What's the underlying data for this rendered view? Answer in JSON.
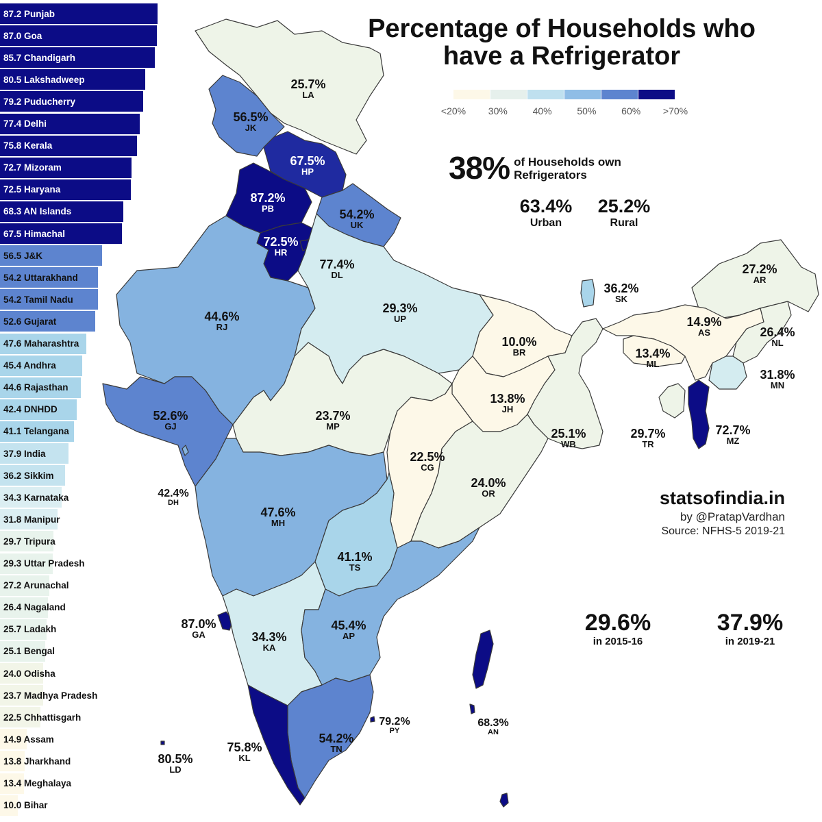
{
  "title_line1": "Percentage of Households who",
  "title_line2": "have a Refrigerator",
  "legend": {
    "ticks": [
      "<20%",
      "30%",
      "40%",
      "50%",
      "60%",
      ">70%"
    ]
  },
  "headline": {
    "value": "38%",
    "line1": "of Households own",
    "line2": "Refrigerators"
  },
  "urban": {
    "value": "63.4%",
    "label": "Urban"
  },
  "rural": {
    "value": "25.2%",
    "label": "Rural"
  },
  "trend": [
    {
      "value": "29.6%",
      "label": "in 2015-16"
    },
    {
      "value": "37.9%",
      "label": "in 2019-21"
    }
  ],
  "brand": {
    "site": "statsofindia.in",
    "by": "by @PratapVardhan",
    "source": "Source: NFHS-5 2019-21"
  },
  "colors": {
    "c0": "#fdf8e8",
    "c1": "#eef4e8",
    "c2": "#d4ecf0",
    "c3": "#a9d5ea",
    "c4": "#85b3e0",
    "c5": "#5d84cf",
    "c6": "#1f2aa0",
    "c7": "#0c0c86"
  },
  "ranking": [
    {
      "label": "87.2 Punjab",
      "value": 87.2
    },
    {
      "label": "87.0 Goa",
      "value": 87.0
    },
    {
      "label": "85.7 Chandigarh",
      "value": 85.7
    },
    {
      "label": "80.5 Lakshadweep",
      "value": 80.5
    },
    {
      "label": "79.2 Puducherry",
      "value": 79.2
    },
    {
      "label": "77.4 Delhi",
      "value": 77.4
    },
    {
      "label": "75.8 Kerala",
      "value": 75.8
    },
    {
      "label": "72.7 Mizoram",
      "value": 72.7
    },
    {
      "label": "72.5 Haryana",
      "value": 72.5
    },
    {
      "label": "68.3 AN Islands",
      "value": 68.3
    },
    {
      "label": "67.5 Himachal",
      "value": 67.5
    },
    {
      "label": "56.5 J&K",
      "value": 56.5
    },
    {
      "label": "54.2 Uttarakhand",
      "value": 54.2
    },
    {
      "label": "54.2 Tamil Nadu",
      "value": 54.2
    },
    {
      "label": "52.6 Gujarat",
      "value": 52.6
    },
    {
      "label": "47.6 Maharashtra",
      "value": 47.6
    },
    {
      "label": "45.4 Andhra",
      "value": 45.4
    },
    {
      "label": "44.6 Rajasthan",
      "value": 44.6
    },
    {
      "label": "42.4 DNHDD",
      "value": 42.4
    },
    {
      "label": "41.1 Telangana",
      "value": 41.1
    },
    {
      "label": "37.9 India",
      "value": 37.9
    },
    {
      "label": "36.2 Sikkim",
      "value": 36.2
    },
    {
      "label": "34.3 Karnataka",
      "value": 34.3
    },
    {
      "label": "31.8 Manipur",
      "value": 31.8
    },
    {
      "label": "29.7 Tripura",
      "value": 29.7
    },
    {
      "label": "29.3 Uttar Pradesh",
      "value": 29.3
    },
    {
      "label": "27.2 Arunachal",
      "value": 27.2
    },
    {
      "label": "26.4 Nagaland",
      "value": 26.4
    },
    {
      "label": "25.7 Ladakh",
      "value": 25.7
    },
    {
      "label": "25.1 Bengal",
      "value": 25.1
    },
    {
      "label": "24.0 Odisha",
      "value": 24.0
    },
    {
      "label": "23.7 Madhya Pradesh",
      "value": 23.7
    },
    {
      "label": "22.5 Chhattisgarh",
      "value": 22.5
    },
    {
      "label": "14.9 Assam",
      "value": 14.9
    },
    {
      "label": "13.8 Jharkhand",
      "value": 13.8
    },
    {
      "label": "13.4 Meghalaya",
      "value": 13.4
    },
    {
      "label": "10.0 Bihar",
      "value": 10.0
    }
  ],
  "regions": [
    {
      "code": "LA",
      "value": "25.7%"
    },
    {
      "code": "JK",
      "value": "56.5%"
    },
    {
      "code": "HP",
      "value": "67.5%"
    },
    {
      "code": "PB",
      "value": "87.2%"
    },
    {
      "code": "UK",
      "value": "54.2%"
    },
    {
      "code": "HR",
      "value": "72.5%"
    },
    {
      "code": "DL",
      "value": "77.4%"
    },
    {
      "code": "RJ",
      "value": "44.6%"
    },
    {
      "code": "UP",
      "value": "29.3%"
    },
    {
      "code": "BR",
      "value": "10.0%"
    },
    {
      "code": "SK",
      "value": "36.2%"
    },
    {
      "code": "AR",
      "value": "27.2%"
    },
    {
      "code": "AS",
      "value": "14.9%"
    },
    {
      "code": "NL",
      "value": "26.4%"
    },
    {
      "code": "ML",
      "value": "13.4%"
    },
    {
      "code": "MN",
      "value": "31.8%"
    },
    {
      "code": "TR",
      "value": "29.7%"
    },
    {
      "code": "MZ",
      "value": "72.7%"
    },
    {
      "code": "GJ",
      "value": "52.6%"
    },
    {
      "code": "MP",
      "value": "23.7%"
    },
    {
      "code": "JH",
      "value": "13.8%"
    },
    {
      "code": "WB",
      "value": "25.1%"
    },
    {
      "code": "CG",
      "value": "22.5%"
    },
    {
      "code": "OR",
      "value": "24.0%"
    },
    {
      "code": "DH",
      "value": "42.4%"
    },
    {
      "code": "MH",
      "value": "47.6%"
    },
    {
      "code": "TS",
      "value": "41.1%"
    },
    {
      "code": "GA",
      "value": "87.0%"
    },
    {
      "code": "KA",
      "value": "34.3%"
    },
    {
      "code": "AP",
      "value": "45.4%"
    },
    {
      "code": "TN",
      "value": "54.2%"
    },
    {
      "code": "PY",
      "value": "79.2%"
    },
    {
      "code": "AN",
      "value": "68.3%"
    },
    {
      "code": "KL",
      "value": "75.8%"
    },
    {
      "code": "LD",
      "value": "80.5%"
    }
  ]
}
